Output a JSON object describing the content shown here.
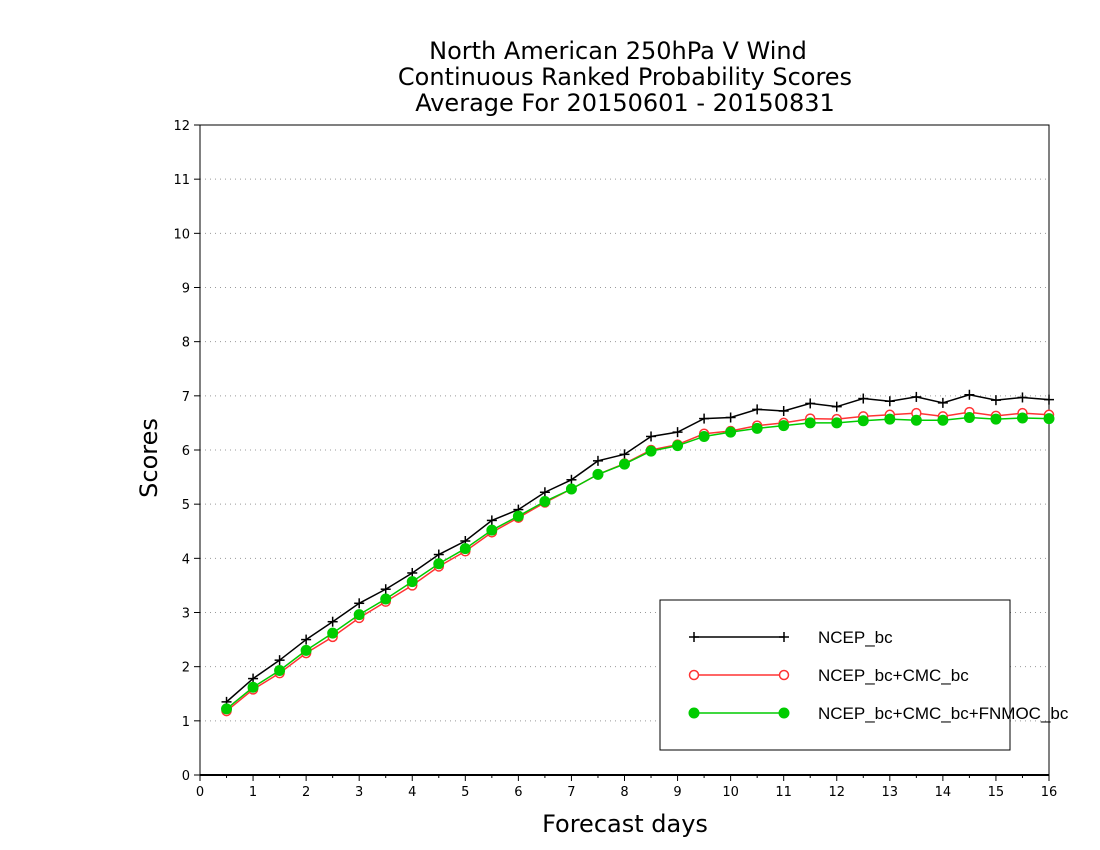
{
  "chart_data": {
    "type": "line",
    "title": [
      "North American 250hPa V Wind",
      "Continuous Ranked Probability Scores",
      "Average For 20150601 - 20150831"
    ],
    "xlabel": "Forecast days",
    "ylabel": "Scores",
    "xlim": [
      0,
      16
    ],
    "ylim": [
      0,
      12
    ],
    "xticks": [
      "0",
      "1",
      "2",
      "3",
      "4",
      "5",
      "6",
      "7",
      "8",
      "9",
      "10",
      "11",
      "12",
      "13",
      "14",
      "15",
      "16"
    ],
    "yticks": [
      "0",
      "1",
      "2",
      "3",
      "4",
      "5",
      "6",
      "7",
      "8",
      "9",
      "10",
      "11",
      "12"
    ],
    "grid": "horizontal dotted",
    "legend_position": "bottom-right",
    "x": [
      0.5,
      1,
      1.5,
      2,
      2.5,
      3,
      3.5,
      4,
      4.5,
      5,
      5.5,
      6,
      6.5,
      7,
      7.5,
      8,
      8.5,
      9,
      9.5,
      10,
      10.5,
      11,
      11.5,
      12,
      12.5,
      13,
      13.5,
      14,
      14.5,
      15,
      15.5,
      16
    ],
    "series": [
      {
        "name": "NCEP_bc",
        "color": "#000000",
        "marker": "plus",
        "values": [
          1.35,
          1.78,
          2.12,
          2.5,
          2.83,
          3.17,
          3.43,
          3.73,
          4.07,
          4.32,
          4.7,
          4.9,
          5.22,
          5.45,
          5.8,
          5.92,
          6.25,
          6.33,
          6.58,
          6.6,
          6.75,
          6.72,
          6.86,
          6.8,
          6.95,
          6.9,
          6.98,
          6.87,
          7.02,
          6.92,
          6.97,
          6.93
        ]
      },
      {
        "name": "NCEP_bc+CMC_bc",
        "color": "#ff3333",
        "marker": "open-circle",
        "values": [
          1.18,
          1.58,
          1.88,
          2.25,
          2.55,
          2.9,
          3.2,
          3.5,
          3.85,
          4.13,
          4.48,
          4.75,
          5.03,
          5.28,
          5.55,
          5.75,
          6.0,
          6.1,
          6.3,
          6.35,
          6.45,
          6.5,
          6.58,
          6.57,
          6.62,
          6.65,
          6.68,
          6.62,
          6.7,
          6.63,
          6.68,
          6.65
        ]
      },
      {
        "name": "NCEP_bc+CMC_bc+FNMOC_bc",
        "color": "#00cc00",
        "marker": "filled-circle",
        "values": [
          1.22,
          1.62,
          1.93,
          2.3,
          2.62,
          2.96,
          3.25,
          3.57,
          3.9,
          4.18,
          4.52,
          4.78,
          5.05,
          5.28,
          5.55,
          5.74,
          5.98,
          6.08,
          6.25,
          6.33,
          6.4,
          6.45,
          6.5,
          6.5,
          6.54,
          6.57,
          6.55,
          6.55,
          6.6,
          6.57,
          6.59,
          6.58
        ]
      }
    ]
  }
}
